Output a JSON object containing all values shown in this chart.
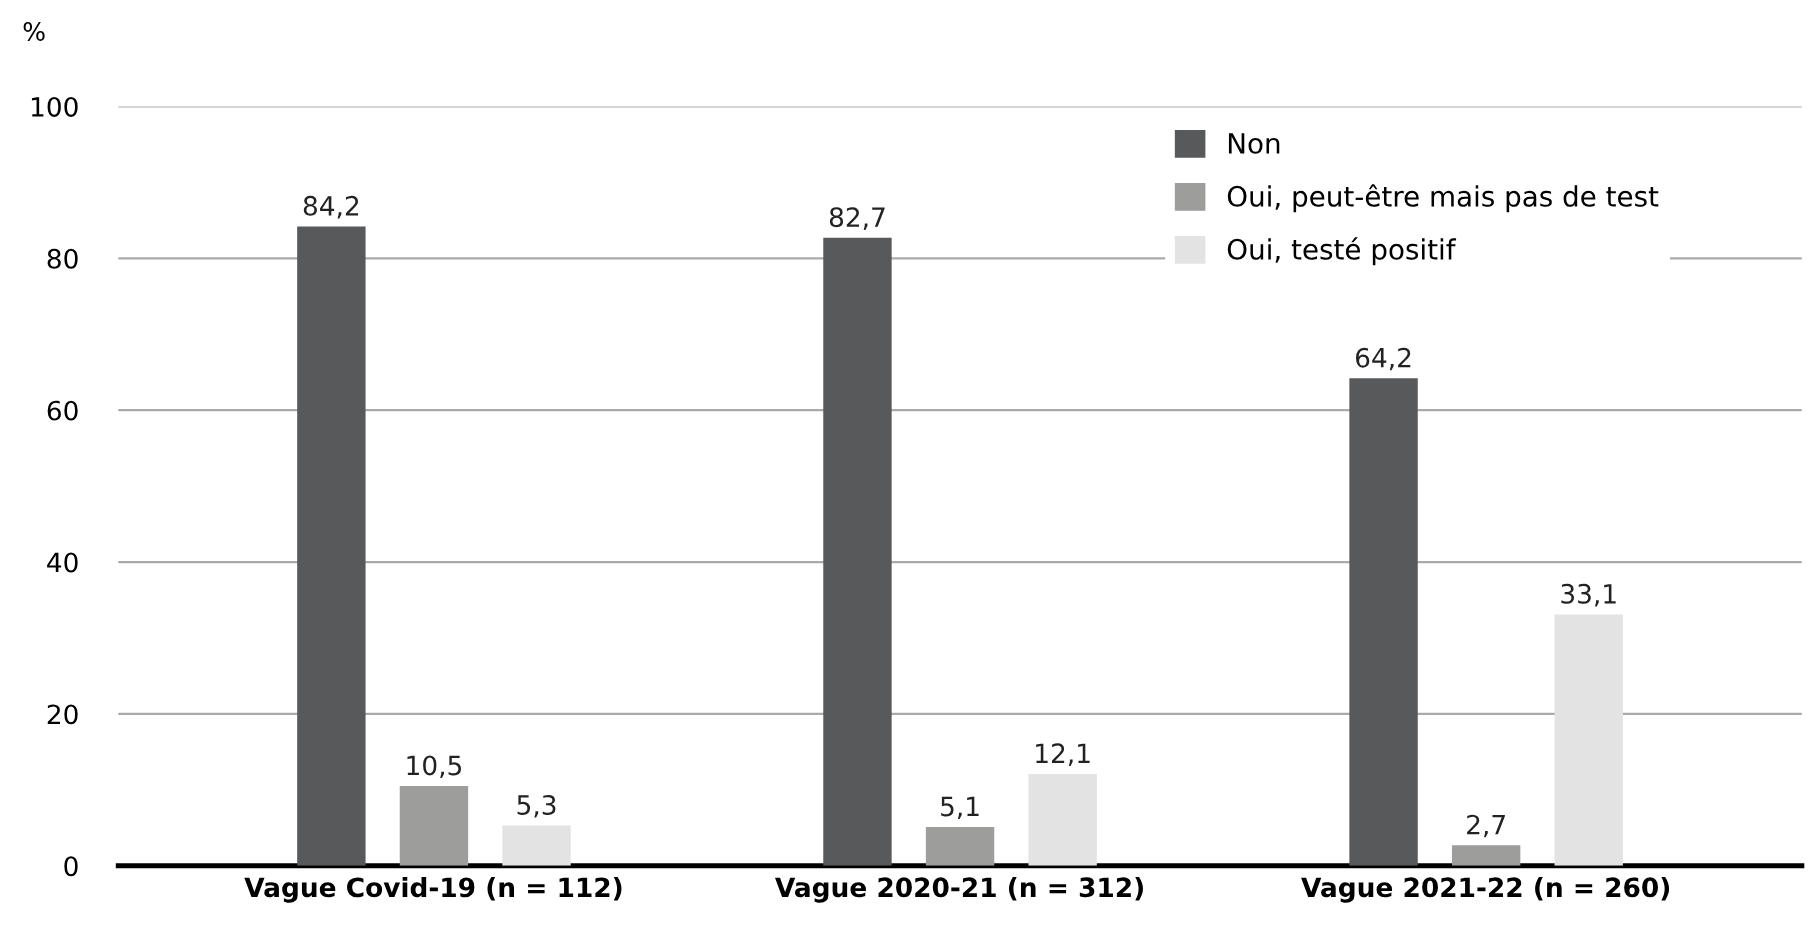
{
  "chart_data": {
    "type": "bar",
    "ylabel": "%",
    "categories": [
      "Vague Covid-19 (n = 112)",
      "Vague 2020-21 (n = 312)",
      "Vague 2021-22 (n = 260)"
    ],
    "series": [
      {
        "name": "Non",
        "color": "#58595b",
        "values": [
          84.2,
          82.7,
          64.2
        ]
      },
      {
        "name": "Oui, peut-être mais pas de test",
        "color": "#9d9d9c",
        "values": [
          10.5,
          5.1,
          2.7
        ]
      },
      {
        "name": "Oui, testé positif",
        "color": "#e3e3e3",
        "values": [
          5.3,
          12.1,
          33.1
        ]
      }
    ],
    "value_labels": [
      [
        "84,2",
        "82,7",
        "64,2"
      ],
      [
        "10,5",
        "5,1",
        "2,7"
      ],
      [
        "5,3",
        "12,1",
        "33,1"
      ]
    ],
    "ylim": [
      0,
      100
    ],
    "yticks": [
      0,
      20,
      40,
      60,
      80,
      100
    ],
    "grid": "y",
    "legend": "top right"
  }
}
